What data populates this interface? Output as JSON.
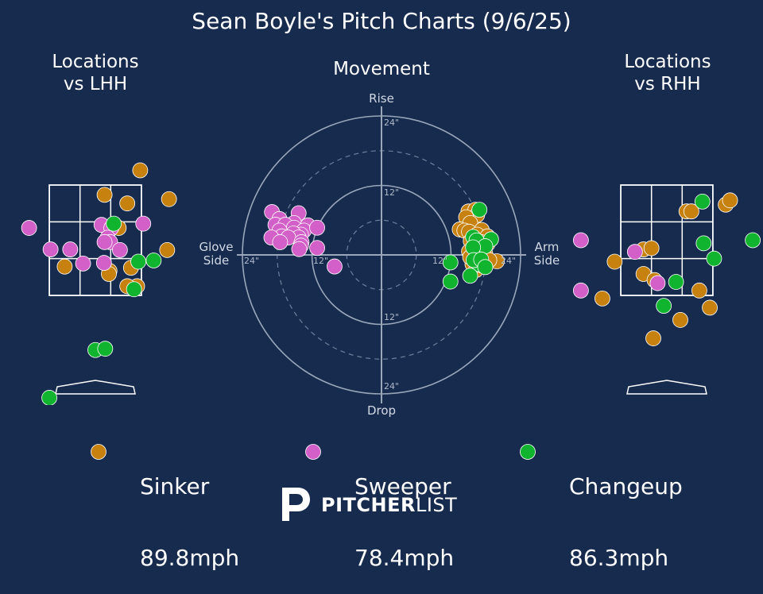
{
  "title": "Sean Boyle's Pitch Charts (9/6/25)",
  "panels": {
    "lhh_title": "Locations\nvs LHH",
    "movement_title": "Movement",
    "rhh_title": "Locations\nvs RHH"
  },
  "movement_axes": {
    "top": "Rise",
    "bottom": "Drop",
    "left": "Glove\nSide",
    "right": "Arm\nSide",
    "ring_labels": [
      "24\"",
      "12\"",
      "12\"",
      "24\""
    ]
  },
  "colors": {
    "background": "#162b4e",
    "Sinker": "#c7810f",
    "Sweeper": "#d260c8",
    "Changeup": "#10b42e"
  },
  "legend": [
    {
      "pitch": "Sinker",
      "velo": "89.8mph"
    },
    {
      "pitch": "Sweeper",
      "velo": "78.4mph"
    },
    {
      "pitch": "Changeup",
      "velo": "86.3mph"
    }
  ],
  "brand": {
    "bold": "PITCHER",
    "light": "LIST"
  },
  "chart_data": [
    {
      "type": "scatter",
      "title": "Locations\nvs LHH",
      "xlim": [
        -1.5,
        1.5
      ],
      "ylim": [
        0,
        5
      ],
      "strike_zone": {
        "x": [
          -0.75,
          0.75
        ],
        "y": [
          1.6,
          3.4
        ]
      },
      "series": [
        {
          "name": "Sinker",
          "points": [
            [
              0.73,
              3.64
            ],
            [
              0.15,
              3.24
            ],
            [
              0.52,
              3.1
            ],
            [
              1.2,
              3.17
            ],
            [
              0.38,
              2.7
            ],
            [
              1.17,
              2.34
            ],
            [
              -0.5,
              2.07
            ],
            [
              0.23,
              2.0
            ],
            [
              0.58,
              2.05
            ],
            [
              0.22,
              1.95
            ],
            [
              0.68,
              1.75
            ],
            [
              0.52,
              1.75
            ]
          ]
        },
        {
          "name": "Sweeper",
          "points": [
            [
              -1.08,
              2.7
            ],
            [
              0.1,
              2.75
            ],
            [
              0.26,
              2.7
            ],
            [
              0.78,
              2.77
            ],
            [
              0.2,
              2.54
            ],
            [
              0.24,
              2.47
            ],
            [
              -0.73,
              2.35
            ],
            [
              -0.41,
              2.35
            ],
            [
              0.4,
              2.34
            ],
            [
              0.15,
              2.47
            ],
            [
              0.14,
              2.13
            ],
            [
              -0.2,
              2.12
            ]
          ]
        },
        {
          "name": "Changeup",
          "points": [
            [
              0.3,
              2.77
            ],
            [
              0.7,
              2.15
            ],
            [
              0.95,
              2.17
            ],
            [
              0.63,
              1.7
            ],
            [
              0.0,
              0.71
            ],
            [
              0.16,
              0.73
            ],
            [
              -0.75,
              -0.07
            ]
          ]
        }
      ]
    },
    {
      "type": "scatter",
      "title": "Movement",
      "unit": "inches",
      "xlim": [
        -24,
        24
      ],
      "ylim": [
        -24,
        24
      ],
      "rings": [
        6,
        12,
        18,
        24
      ],
      "series": [
        {
          "name": "Sinker",
          "points": [
            [
              15,
              7.5
            ],
            [
              16.2,
              7.8
            ],
            [
              16.5,
              6.9
            ],
            [
              14.6,
              6.5
            ],
            [
              15.3,
              5.5
            ],
            [
              13.5,
              4.4
            ],
            [
              14.3,
              4.2
            ],
            [
              17.3,
              4.3
            ],
            [
              15.1,
              4.0
            ],
            [
              16.5,
              3.5
            ],
            [
              18.3,
              3.2
            ],
            [
              15.4,
              2.4
            ],
            [
              17.2,
              2.2
            ],
            [
              18.3,
              1.9
            ],
            [
              16.6,
              1.0
            ],
            [
              15.1,
              0.6
            ],
            [
              17.9,
              0.2
            ],
            [
              19.9,
              -1.1
            ],
            [
              17.0,
              0.0
            ],
            [
              15.7,
              -1.6
            ],
            [
              18.6,
              -0.9
            ],
            [
              15.3,
              -0.4
            ],
            [
              16.3,
              -2.6
            ],
            [
              17.2,
              -1.8
            ]
          ]
        },
        {
          "name": "Sweeper",
          "points": [
            [
              -18.9,
              7.4
            ],
            [
              -17.6,
              6.2
            ],
            [
              -14.3,
              7.2
            ],
            [
              -18.3,
              5.2
            ],
            [
              -15.1,
              5.5
            ],
            [
              -16.6,
              5.2
            ],
            [
              -12.7,
              5.1
            ],
            [
              -15.1,
              4.7
            ],
            [
              -13.4,
              4.2
            ],
            [
              -17.6,
              4.2
            ],
            [
              -11.1,
              4.7
            ],
            [
              -13.9,
              3.5
            ],
            [
              -15.2,
              3.7
            ],
            [
              -17.2,
              3.2
            ],
            [
              -14.3,
              3.0
            ],
            [
              -19.0,
              3.0
            ],
            [
              -16.1,
              3.0
            ],
            [
              -13.8,
              2.2
            ],
            [
              -17.5,
              2.2
            ],
            [
              -11.1,
              1.2
            ],
            [
              -13.9,
              1.6
            ],
            [
              -14.2,
              1.0
            ],
            [
              -8.1,
              -2.0
            ]
          ]
        },
        {
          "name": "Changeup",
          "points": [
            [
              16.9,
              7.8
            ],
            [
              15.8,
              3.1
            ],
            [
              18.9,
              2.7
            ],
            [
              16.4,
              2.5
            ],
            [
              17.9,
              1.5
            ],
            [
              15.8,
              1.3
            ],
            [
              11.9,
              -1.3
            ],
            [
              16.8,
              -1.6
            ],
            [
              15.9,
              -0.9
            ],
            [
              17.2,
              -0.8
            ],
            [
              17.9,
              -2.1
            ],
            [
              15.3,
              -3.6
            ],
            [
              11.9,
              -4.6
            ]
          ]
        }
      ]
    },
    {
      "type": "scatter",
      "title": "Locations\nvs RHH",
      "xlim": [
        -1.5,
        1.5
      ],
      "ylim": [
        0,
        5
      ],
      "strike_zone": {
        "x": [
          -0.75,
          0.75
        ],
        "y": [
          1.6,
          3.4
        ]
      },
      "series": [
        {
          "name": "Sinker",
          "points": [
            [
              0.32,
              2.97
            ],
            [
              0.4,
              2.97
            ],
            [
              0.96,
              3.08
            ],
            [
              1.03,
              3.15
            ],
            [
              -0.85,
              2.15
            ],
            [
              -0.38,
              2.35
            ],
            [
              -0.25,
              2.37
            ],
            [
              -0.38,
              1.95
            ],
            [
              -0.2,
              1.85
            ],
            [
              -1.05,
              1.55
            ],
            [
              0.53,
              1.68
            ],
            [
              0.7,
              1.4
            ],
            [
              0.22,
              1.2
            ],
            [
              -0.22,
              0.9
            ]
          ]
        },
        {
          "name": "Sweeper",
          "points": [
            [
              -1.4,
              2.5
            ],
            [
              -1.4,
              1.68
            ],
            [
              -0.52,
              2.31
            ],
            [
              -0.15,
              1.8
            ]
          ]
        },
        {
          "name": "Changeup",
          "points": [
            [
              0.58,
              3.13
            ],
            [
              0.6,
              2.45
            ],
            [
              0.77,
              2.2
            ],
            [
              1.4,
              2.5
            ],
            [
              0.15,
              1.82
            ],
            [
              -0.05,
              1.43
            ]
          ]
        }
      ]
    }
  ]
}
